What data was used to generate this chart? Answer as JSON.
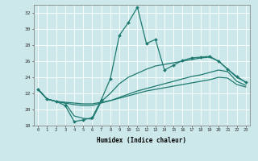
{
  "xlabel": "Humidex (Indice chaleur)",
  "background_color": "#cde8ea",
  "line_color": "#1e7a70",
  "xlim": [
    -0.5,
    23.5
  ],
  "ylim": [
    18,
    33
  ],
  "yticks": [
    18,
    20,
    22,
    24,
    26,
    28,
    30,
    32
  ],
  "xticks": [
    0,
    1,
    2,
    3,
    4,
    5,
    6,
    7,
    8,
    9,
    10,
    11,
    12,
    13,
    14,
    15,
    16,
    17,
    18,
    19,
    20,
    21,
    22,
    23
  ],
  "line1_x": [
    0,
    1,
    2,
    3,
    4,
    5,
    6,
    7,
    8,
    9,
    10,
    11,
    12,
    13,
    14,
    15,
    16,
    17,
    18,
    19,
    20,
    21,
    22,
    23
  ],
  "line1_y": [
    22.5,
    21.3,
    21.0,
    20.5,
    18.5,
    18.7,
    19.0,
    21.2,
    23.8,
    29.2,
    30.8,
    32.7,
    28.2,
    28.7,
    24.9,
    25.5,
    26.1,
    26.4,
    26.5,
    26.6,
    26.0,
    25.0,
    24.1,
    23.4
  ],
  "line2_x": [
    0,
    1,
    2,
    3,
    4,
    5,
    6,
    7,
    8,
    9,
    10,
    11,
    12,
    13,
    14,
    15,
    16,
    17,
    18,
    19,
    20,
    21,
    22,
    23
  ],
  "line2_y": [
    22.5,
    21.3,
    21.0,
    20.8,
    19.2,
    18.9,
    18.8,
    21.0,
    22.0,
    23.2,
    24.0,
    24.5,
    25.0,
    25.4,
    25.6,
    25.8,
    26.0,
    26.2,
    26.4,
    26.5,
    26.0,
    25.0,
    24.0,
    23.4
  ],
  "line3_x": [
    0,
    1,
    2,
    3,
    4,
    5,
    6,
    7,
    8,
    9,
    10,
    11,
    12,
    13,
    14,
    15,
    16,
    17,
    18,
    19,
    20,
    21,
    22,
    23
  ],
  "line3_y": [
    22.5,
    21.3,
    21.0,
    20.8,
    20.6,
    20.5,
    20.5,
    20.8,
    21.1,
    21.5,
    21.9,
    22.3,
    22.6,
    22.9,
    23.2,
    23.5,
    23.8,
    24.1,
    24.3,
    24.6,
    24.9,
    24.7,
    23.5,
    23.0
  ],
  "line4_x": [
    0,
    1,
    2,
    3,
    4,
    5,
    6,
    7,
    8,
    9,
    10,
    11,
    12,
    13,
    14,
    15,
    16,
    17,
    18,
    19,
    20,
    21,
    22,
    23
  ],
  "line4_y": [
    22.5,
    21.3,
    21.0,
    20.9,
    20.8,
    20.7,
    20.7,
    20.9,
    21.1,
    21.4,
    21.7,
    22.0,
    22.3,
    22.5,
    22.7,
    22.9,
    23.1,
    23.3,
    23.5,
    23.7,
    24.0,
    23.9,
    23.1,
    22.8
  ]
}
